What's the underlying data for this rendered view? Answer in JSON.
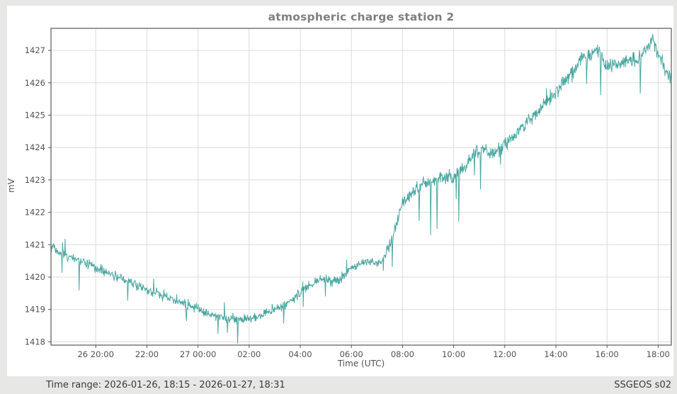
{
  "window": {
    "background_color": "#e7e7e5",
    "panel_color": "#ffffff"
  },
  "header": {
    "title": "atmospheric charge station 2"
  },
  "footer": {
    "time_range_label": "Time range:",
    "time_range_value": "2026-01-26, 18:15 - 2026-01-27, 18:31",
    "station_id": "SSGEOS s02"
  },
  "chart_data": {
    "type": "line",
    "title": "atmospheric charge station 2",
    "xlabel": "Time (UTC)",
    "ylabel": "mV",
    "series_name": "atmospheric charge",
    "line_color": "#4aa7a0",
    "grid": true,
    "grid_color": "#dcdcdc",
    "frame_color": "#58585b",
    "tick_color": "#525252",
    "x_start": "2026-01-26 18:15 UTC",
    "x_end": "2026-01-27 18:31 UTC",
    "x_hours_total": 24.2667,
    "x_ticks": [
      {
        "t": 1.75,
        "label": "26 20:00"
      },
      {
        "t": 3.75,
        "label": "22:00"
      },
      {
        "t": 5.75,
        "label": "27 00:00"
      },
      {
        "t": 7.75,
        "label": "02:00"
      },
      {
        "t": 9.75,
        "label": "04:00"
      },
      {
        "t": 11.75,
        "label": "06:00"
      },
      {
        "t": 13.75,
        "label": "08:00"
      },
      {
        "t": 15.75,
        "label": "10:00"
      },
      {
        "t": 17.75,
        "label": "12:00"
      },
      {
        "t": 19.75,
        "label": "14:00"
      },
      {
        "t": 21.75,
        "label": "16:00"
      },
      {
        "t": 23.75,
        "label": "18:00"
      }
    ],
    "y_ticks": [
      1418,
      1419,
      1420,
      1421,
      1422,
      1423,
      1424,
      1425,
      1426,
      1427
    ],
    "ylim": [
      1417.9,
      1427.68
    ],
    "anchors": [
      [
        0,
        1420.85
      ],
      [
        0.08,
        1421.0
      ],
      [
        0.3,
        1420.7
      ],
      [
        0.8,
        1420.6
      ],
      [
        1.3,
        1420.45
      ],
      [
        1.75,
        1420.3
      ],
      [
        2.3,
        1420.1
      ],
      [
        2.75,
        1419.95
      ],
      [
        3.3,
        1419.8
      ],
      [
        3.75,
        1419.6
      ],
      [
        4.3,
        1419.45
      ],
      [
        4.75,
        1419.3
      ],
      [
        5.3,
        1419.2
      ],
      [
        5.75,
        1419.0
      ],
      [
        6.3,
        1418.85
      ],
      [
        6.75,
        1418.75
      ],
      [
        7.3,
        1418.68
      ],
      [
        7.9,
        1418.72
      ],
      [
        8.4,
        1418.9
      ],
      [
        8.75,
        1419.0
      ],
      [
        9.3,
        1419.25
      ],
      [
        9.75,
        1419.5
      ],
      [
        10.2,
        1419.78
      ],
      [
        10.5,
        1419.95
      ],
      [
        10.9,
        1419.85
      ],
      [
        11.3,
        1419.95
      ],
      [
        11.75,
        1420.25
      ],
      [
        12.15,
        1420.45
      ],
      [
        12.5,
        1420.5
      ],
      [
        12.8,
        1420.4
      ],
      [
        13.05,
        1420.6
      ],
      [
        13.3,
        1421.15
      ],
      [
        13.55,
        1421.75
      ],
      [
        13.75,
        1422.25
      ],
      [
        14.1,
        1422.6
      ],
      [
        14.5,
        1422.8
      ],
      [
        14.75,
        1422.9
      ],
      [
        15.25,
        1423.05
      ],
      [
        15.75,
        1423.1
      ],
      [
        16.25,
        1423.45
      ],
      [
        16.6,
        1423.85
      ],
      [
        16.9,
        1423.95
      ],
      [
        17.25,
        1423.85
      ],
      [
        17.6,
        1424.0
      ],
      [
        17.8,
        1424.15
      ],
      [
        18.25,
        1424.5
      ],
      [
        18.75,
        1424.9
      ],
      [
        19.25,
        1425.3
      ],
      [
        19.75,
        1425.7
      ],
      [
        20.25,
        1426.2
      ],
      [
        20.7,
        1426.7
      ],
      [
        21.0,
        1426.85
      ],
      [
        21.35,
        1427.0
      ],
      [
        21.75,
        1426.5
      ],
      [
        22.1,
        1426.55
      ],
      [
        22.5,
        1426.65
      ],
      [
        22.9,
        1426.7
      ],
      [
        23.2,
        1426.95
      ],
      [
        23.55,
        1427.35
      ],
      [
        23.75,
        1426.9
      ],
      [
        24.0,
        1426.45
      ],
      [
        24.27,
        1426.15
      ]
    ],
    "spikes": [
      [
        0.45,
        0.3
      ],
      [
        1.1,
        -0.8
      ],
      [
        3.0,
        -0.65
      ],
      [
        5.3,
        -0.55
      ],
      [
        6.9,
        -0.5
      ],
      [
        7.3,
        -0.72
      ],
      [
        9.1,
        -0.5
      ],
      [
        13.35,
        -0.85
      ],
      [
        14.4,
        -1.0
      ],
      [
        14.85,
        -1.55
      ],
      [
        15.1,
        -1.6
      ],
      [
        15.95,
        -1.5
      ],
      [
        16.8,
        -1.3
      ],
      [
        20.95,
        -0.95
      ],
      [
        21.5,
        -1.05
      ],
      [
        23.05,
        -1.05
      ]
    ],
    "noise": {
      "sd_early": 0.07,
      "sd_late": 0.105,
      "change_t": 13.1,
      "needle_prob": 0.008,
      "needle_depth_min": 0.25,
      "needle_depth_max": 0.75,
      "up_fraction": 0.25,
      "seed": 20260126
    },
    "points_per_hour": 60
  }
}
